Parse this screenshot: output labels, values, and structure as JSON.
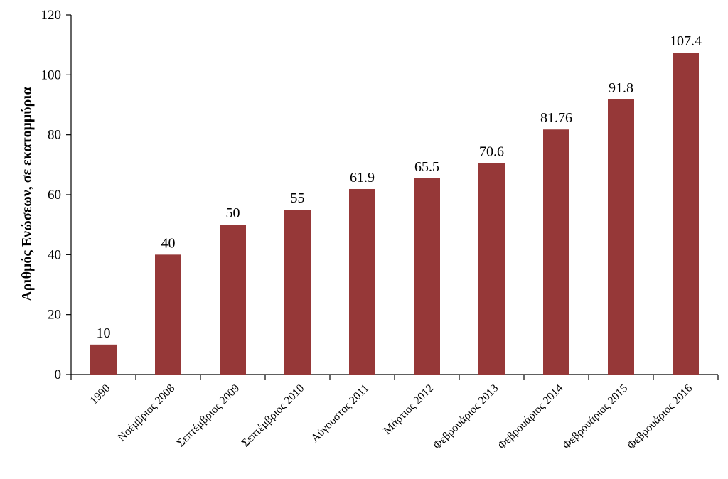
{
  "chart_data": {
    "type": "bar",
    "title": "",
    "xlabel": "",
    "ylabel": "Αριθμός Ενώσεων, σε εκατομμύρια",
    "categories": [
      "1990",
      "Νοέμβριος 2008",
      "Σεπτέμβριος 2009",
      "Σεπτέμβριος 2010",
      "Αύγουστος 2011",
      "Μάρτιος 2012",
      "Φεβρουάριος 2013",
      "Φεβρουάριος 2014",
      "Φεβρουάριος 2015",
      "Φεβρουάριος 2016"
    ],
    "values": [
      10,
      40,
      50,
      55,
      61.9,
      65.5,
      70.6,
      81.76,
      91.8,
      107.4
    ],
    "data_labels": [
      "10",
      "40",
      "50",
      "55",
      "61.9",
      "65.5",
      "70.6",
      "81.76",
      "91.8",
      "107.4"
    ],
    "ylim": [
      0,
      120
    ],
    "yticks": [
      0,
      20,
      40,
      60,
      80,
      100,
      120
    ],
    "ytick_labels": [
      "0",
      "20",
      "40",
      "60",
      "80",
      "100",
      "120"
    ],
    "grid": false,
    "legend": "none",
    "bar_color": "#963838",
    "axis_color": "#000000"
  }
}
